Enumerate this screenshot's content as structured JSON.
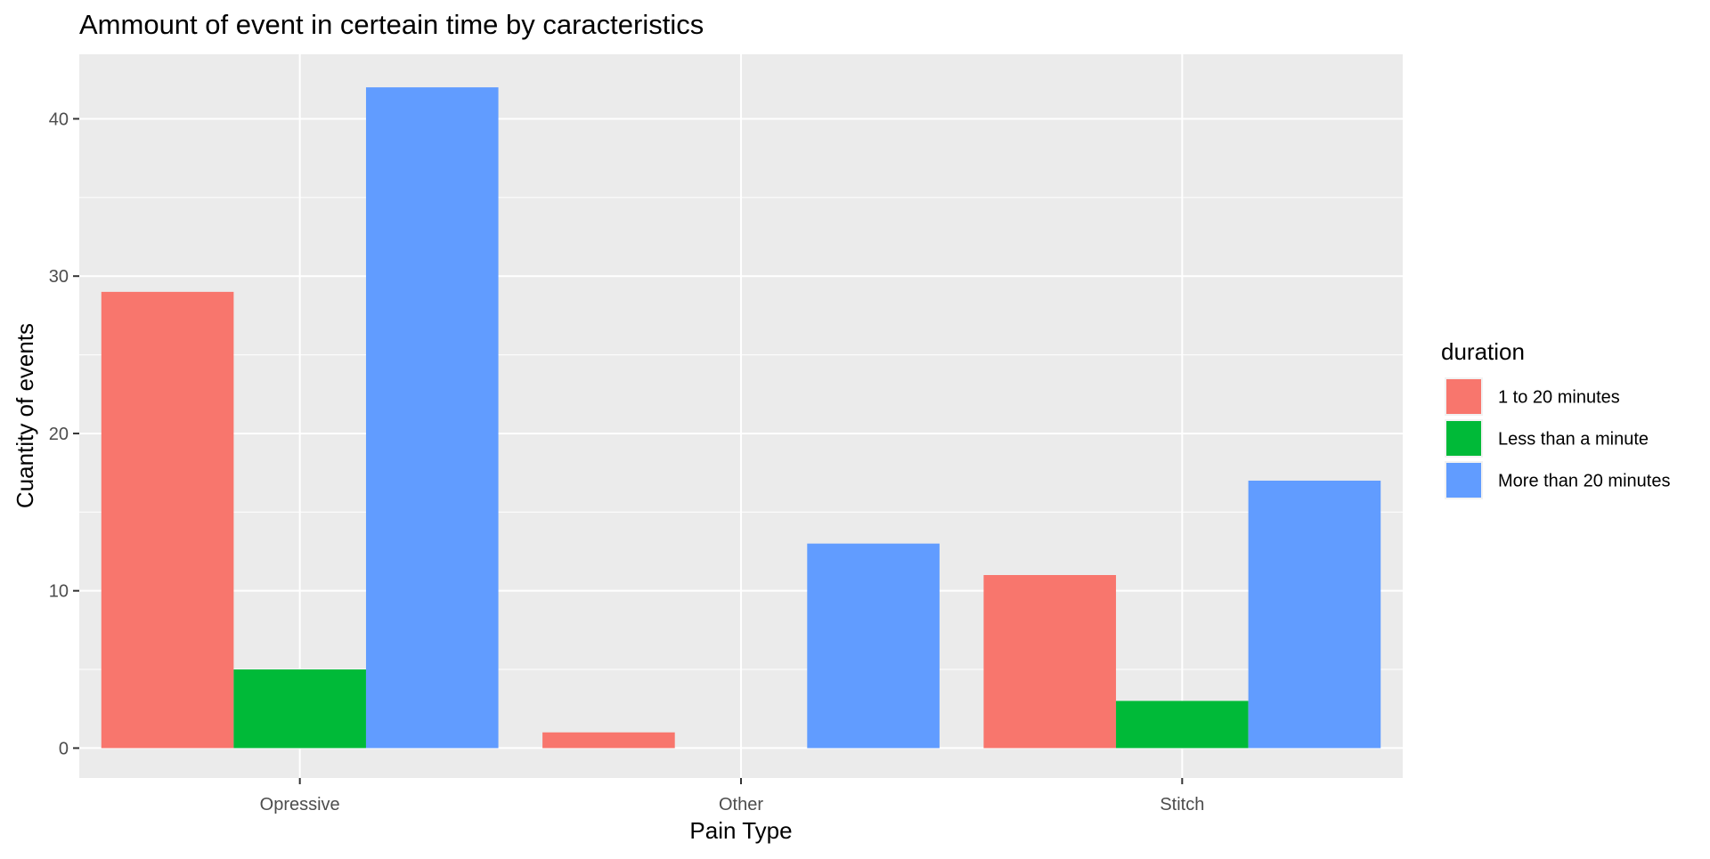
{
  "chart_data": {
    "type": "bar",
    "title": "Ammount of event in certeain time by caracteristics",
    "xlabel": "Pain Type",
    "ylabel": "Cuantity of events",
    "categories": [
      "Opressive",
      "Other",
      "Stitch"
    ],
    "series": [
      {
        "name": "1 to 20 minutes",
        "color": "#F8766D",
        "values": [
          29,
          1,
          11
        ]
      },
      {
        "name": "Less than a minute",
        "color": "#00BA38",
        "values": [
          5,
          0,
          3
        ]
      },
      {
        "name": "More than 20 minutes",
        "color": "#619CFF",
        "values": [
          42,
          13,
          17
        ]
      }
    ],
    "ylim": [
      -1.9,
      44.1
    ],
    "yticks": [
      0,
      10,
      20,
      30,
      40
    ],
    "grid": true,
    "panel_background": "#EBEBEB",
    "legend": {
      "title": "duration",
      "position": "right"
    }
  }
}
